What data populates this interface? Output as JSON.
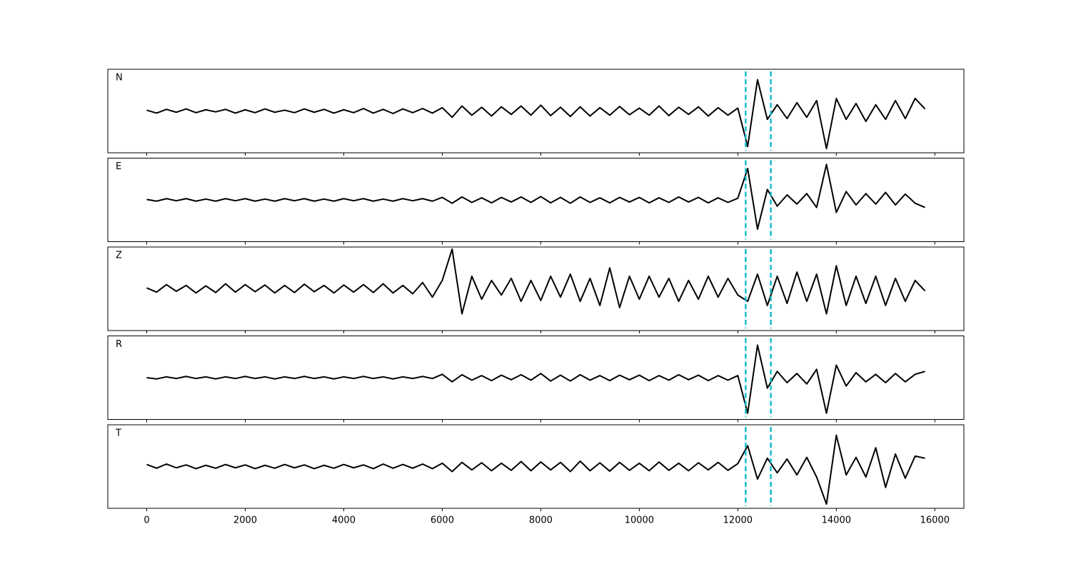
{
  "chart_data": {
    "type": "line",
    "color": "#000000",
    "vline_color": "#17becf",
    "xlim": [
      -790,
      16590
    ],
    "ylim": [
      -1,
      1
    ],
    "xticks": [
      0,
      2000,
      4000,
      6000,
      8000,
      10000,
      12000,
      14000,
      16000
    ],
    "vlines": [
      12160,
      12670
    ],
    "x": [
      0,
      200,
      400,
      600,
      800,
      1000,
      1200,
      1400,
      1600,
      1800,
      2000,
      2200,
      2400,
      2600,
      2800,
      3000,
      3200,
      3400,
      3600,
      3800,
      4000,
      4200,
      4400,
      4600,
      4800,
      5000,
      5200,
      5400,
      5600,
      5800,
      6000,
      6200,
      6400,
      6600,
      6800,
      7000,
      7200,
      7400,
      7600,
      7800,
      8000,
      8200,
      8400,
      8600,
      8800,
      9000,
      9200,
      9400,
      9600,
      9800,
      10000,
      10200,
      10400,
      10600,
      10800,
      11000,
      11200,
      11400,
      11600,
      11800,
      12000,
      12200,
      12400,
      12600,
      12800,
      13000,
      13200,
      13400,
      13600,
      13800,
      14000,
      14200,
      14400,
      14600,
      14800,
      15000,
      15200,
      15400,
      15600,
      15800
    ],
    "panels": [
      {
        "label": "N",
        "values": [
          0.02,
          -0.05,
          0.04,
          -0.03,
          0.05,
          -0.04,
          0.03,
          -0.02,
          0.04,
          -0.05,
          0.03,
          -0.04,
          0.05,
          -0.03,
          0.02,
          -0.04,
          0.05,
          -0.03,
          0.04,
          -0.05,
          0.03,
          -0.04,
          0.06,
          -0.05,
          0.04,
          -0.06,
          0.05,
          -0.04,
          0.06,
          -0.05,
          0.08,
          -0.15,
          0.12,
          -0.1,
          0.09,
          -0.12,
          0.1,
          -0.08,
          0.12,
          -0.1,
          0.14,
          -0.11,
          0.09,
          -0.13,
          0.1,
          -0.12,
          0.08,
          -0.1,
          0.11,
          -0.09,
          0.07,
          -0.1,
          0.12,
          -0.11,
          0.09,
          -0.08,
          0.1,
          -0.12,
          0.08,
          -0.1,
          0.07,
          -0.85,
          0.75,
          -0.2,
          0.15,
          -0.18,
          0.2,
          -0.15,
          0.25,
          -0.9,
          0.3,
          -0.2,
          0.18,
          -0.25,
          0.15,
          -0.2,
          0.25,
          -0.18,
          0.3,
          0.05
        ]
      },
      {
        "label": "E",
        "values": [
          0.01,
          -0.03,
          0.03,
          -0.02,
          0.03,
          -0.03,
          0.02,
          -0.03,
          0.03,
          -0.02,
          0.03,
          -0.03,
          0.02,
          -0.03,
          0.03,
          -0.02,
          0.03,
          -0.03,
          0.02,
          -0.03,
          0.03,
          -0.02,
          0.03,
          -0.03,
          0.02,
          -0.03,
          0.03,
          -0.02,
          0.03,
          -0.03,
          0.06,
          -0.08,
          0.07,
          -0.06,
          0.05,
          -0.07,
          0.06,
          -0.05,
          0.07,
          -0.06,
          0.08,
          -0.07,
          0.06,
          -0.08,
          0.07,
          -0.06,
          0.05,
          -0.07,
          0.06,
          -0.05,
          0.06,
          -0.07,
          0.05,
          -0.06,
          0.07,
          -0.05,
          0.06,
          -0.07,
          0.05,
          -0.06,
          0.04,
          0.75,
          -0.7,
          0.25,
          -0.15,
          0.12,
          -0.1,
          0.15,
          -0.18,
          0.85,
          -0.3,
          0.2,
          -0.12,
          0.15,
          -0.1,
          0.18,
          -0.12,
          0.14,
          -0.08,
          -0.18
        ]
      },
      {
        "label": "Z",
        "values": [
          0.02,
          -0.08,
          0.1,
          -0.06,
          0.08,
          -0.1,
          0.07,
          -0.09,
          0.12,
          -0.08,
          0.1,
          -0.07,
          0.09,
          -0.1,
          0.08,
          -0.09,
          0.11,
          -0.07,
          0.08,
          -0.1,
          0.09,
          -0.08,
          0.1,
          -0.09,
          0.12,
          -0.1,
          0.08,
          -0.12,
          0.15,
          -0.2,
          0.2,
          0.95,
          -0.6,
          0.3,
          -0.25,
          0.2,
          -0.15,
          0.25,
          -0.3,
          0.2,
          -0.28,
          0.3,
          -0.2,
          0.35,
          -0.3,
          0.25,
          -0.4,
          0.5,
          -0.45,
          0.3,
          -0.25,
          0.3,
          -0.2,
          0.25,
          -0.3,
          0.2,
          -0.25,
          0.3,
          -0.2,
          0.25,
          -0.15,
          -0.3,
          0.35,
          -0.4,
          0.3,
          -0.35,
          0.4,
          -0.3,
          0.35,
          -0.6,
          0.55,
          -0.4,
          0.3,
          -0.35,
          0.3,
          -0.4,
          0.25,
          -0.3,
          0.2,
          -0.05
        ]
      },
      {
        "label": "R",
        "values": [
          0.0,
          -0.03,
          0.02,
          -0.02,
          0.03,
          -0.02,
          0.02,
          -0.03,
          0.02,
          -0.02,
          0.03,
          -0.02,
          0.02,
          -0.03,
          0.02,
          -0.02,
          0.03,
          -0.02,
          0.02,
          -0.03,
          0.02,
          -0.02,
          0.03,
          -0.02,
          0.02,
          -0.03,
          0.02,
          -0.02,
          0.03,
          -0.02,
          0.08,
          -0.1,
          0.07,
          -0.06,
          0.05,
          -0.07,
          0.06,
          -0.05,
          0.07,
          -0.06,
          0.1,
          -0.08,
          0.06,
          -0.08,
          0.07,
          -0.06,
          0.05,
          -0.07,
          0.06,
          -0.05,
          0.06,
          -0.07,
          0.05,
          -0.06,
          0.07,
          -0.05,
          0.06,
          -0.07,
          0.05,
          -0.06,
          0.05,
          -0.85,
          0.78,
          -0.25,
          0.15,
          -0.12,
          0.1,
          -0.15,
          0.2,
          -0.85,
          0.3,
          -0.2,
          0.12,
          -0.1,
          0.08,
          -0.12,
          0.1,
          -0.1,
          0.08,
          0.15
        ]
      },
      {
        "label": "T",
        "values": [
          0.05,
          -0.04,
          0.06,
          -0.03,
          0.04,
          -0.05,
          0.03,
          -0.04,
          0.05,
          -0.03,
          0.04,
          -0.05,
          0.03,
          -0.04,
          0.05,
          -0.03,
          0.04,
          -0.05,
          0.03,
          -0.04,
          0.05,
          -0.03,
          0.04,
          -0.05,
          0.06,
          -0.04,
          0.05,
          -0.04,
          0.06,
          -0.05,
          0.08,
          -0.12,
          0.1,
          -0.08,
          0.09,
          -0.1,
          0.08,
          -0.09,
          0.12,
          -0.1,
          0.11,
          -0.08,
          0.1,
          -0.12,
          0.13,
          -0.1,
          0.09,
          -0.11,
          0.1,
          -0.09,
          0.08,
          -0.1,
          0.11,
          -0.09,
          0.08,
          -0.1,
          0.09,
          -0.08,
          0.1,
          -0.09,
          0.07,
          0.5,
          -0.3,
          0.2,
          -0.15,
          0.18,
          -0.2,
          0.22,
          -0.25,
          -0.9,
          0.75,
          -0.2,
          0.22,
          -0.25,
          0.45,
          -0.5,
          0.3,
          -0.28,
          0.25,
          0.2
        ]
      }
    ]
  }
}
